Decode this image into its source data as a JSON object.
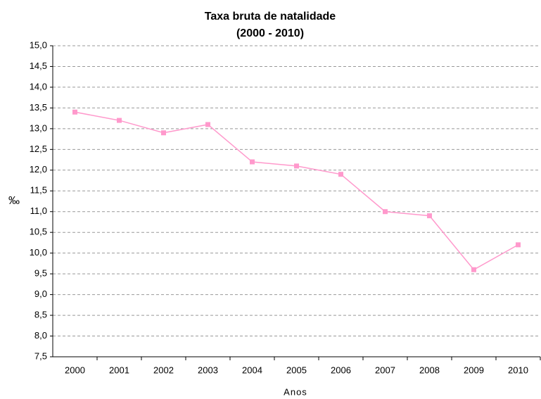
{
  "chart_data": {
    "type": "line",
    "title": "Taxa bruta de natalidade",
    "subtitle": "(2000 - 2010)",
    "x_label": "Anos",
    "y_label": "‰",
    "categories": [
      "2000",
      "2001",
      "2002",
      "2003",
      "2004",
      "2005",
      "2006",
      "2007",
      "2008",
      "2009",
      "2010"
    ],
    "series": [
      {
        "name": "Taxa bruta de natalidade",
        "color": "#ff99cc",
        "values": [
          13.4,
          13.2,
          12.9,
          13.1,
          12.2,
          12.1,
          11.9,
          11.0,
          10.9,
          9.6,
          10.2
        ]
      }
    ],
    "ylim": [
      7.5,
      15.0
    ],
    "yticks": [
      {
        "value": 7.5,
        "label": "7,5"
      },
      {
        "value": 8.0,
        "label": "8,0"
      },
      {
        "value": 8.5,
        "label": "8,5"
      },
      {
        "value": 9.0,
        "label": "9,0"
      },
      {
        "value": 9.5,
        "label": "9,5"
      },
      {
        "value": 10.0,
        "label": "10,0"
      },
      {
        "value": 10.5,
        "label": "10,5"
      },
      {
        "value": 11.0,
        "label": "11,0"
      },
      {
        "value": 11.5,
        "label": "11,5"
      },
      {
        "value": 12.0,
        "label": "12,0"
      },
      {
        "value": 12.5,
        "label": "12,5"
      },
      {
        "value": 13.0,
        "label": "13,0"
      },
      {
        "value": 13.5,
        "label": "13,5"
      },
      {
        "value": 14.0,
        "label": "14,0"
      },
      {
        "value": 14.5,
        "label": "14,5"
      },
      {
        "value": 15.0,
        "label": "15,0"
      }
    ],
    "grid": true
  }
}
